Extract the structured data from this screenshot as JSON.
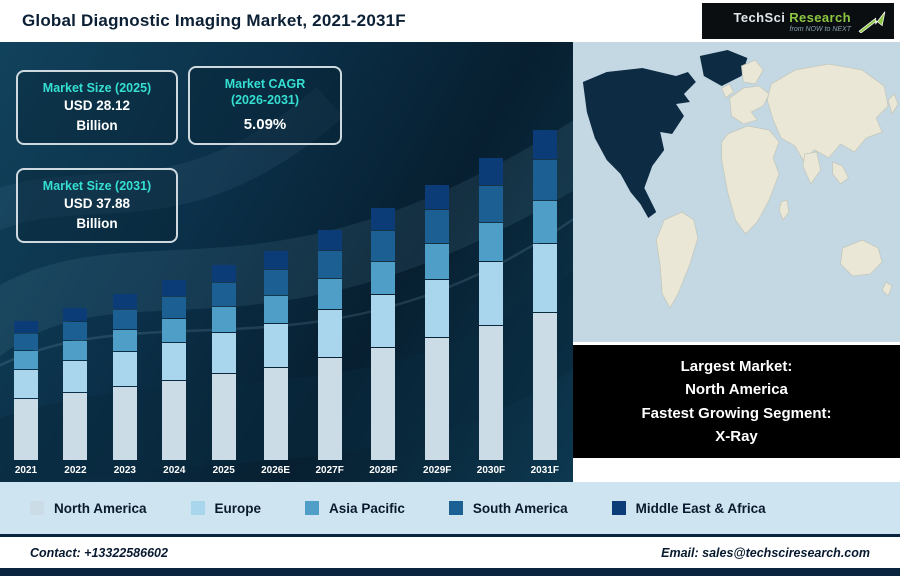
{
  "header": {
    "title": "Global Diagnostic Imaging Market, 2021-2031F"
  },
  "logo": {
    "name_part1": "TechSci",
    "name_part2": "Research",
    "tagline": "from NOW to NEXT"
  },
  "cards": [
    {
      "label": "Market Size (2025)",
      "value": "USD 28.12",
      "unit": "Billion"
    },
    {
      "label": "Market CAGR",
      "sublabel": "(2026-2031)",
      "value": "5.09%"
    },
    {
      "label": "Market Size (2031)",
      "value": "USD 37.88",
      "unit": "Billion"
    }
  ],
  "map_panel": {
    "lines": [
      "Largest Market:",
      "North America",
      "Fastest Growing Segment:",
      "X-Ray"
    ]
  },
  "footer": {
    "contact": "Contact: +13322586602",
    "email": "Email: sales@techsciresearch.com"
  },
  "colors": {
    "accent_teal": "#35dfd2",
    "brand_green": "#8bc541",
    "navy_bar": "#0a2440",
    "legend_strip": "#cfe4f1",
    "map_highlight": "#0e2b44"
  },
  "chart_data": {
    "type": "bar",
    "stacked": true,
    "title": "Global Diagnostic Imaging Market, 2021-2031F",
    "unit": "USD Billion",
    "categories": [
      "2021",
      "2022",
      "2023",
      "2024",
      "2025",
      "2026E",
      "2027F",
      "2028F",
      "2029F",
      "2030F",
      "2031F"
    ],
    "series": [
      {
        "name": "North America",
        "color": "#ccdce6",
        "values": [
          10.85,
          11.27,
          11.72,
          12.17,
          12.65,
          13.12,
          13.79,
          14.51,
          15.26,
          16.13,
          17.05
        ]
      },
      {
        "name": "Europe",
        "color": "#a9d6ec",
        "values": [
          5.06,
          5.26,
          5.47,
          5.68,
          5.91,
          6.12,
          6.44,
          6.77,
          7.12,
          7.53,
          7.95
        ]
      },
      {
        "name": "Asia Pacific",
        "color": "#4f9ec8",
        "values": [
          3.13,
          3.26,
          3.39,
          3.52,
          3.66,
          3.79,
          3.98,
          4.19,
          4.41,
          4.66,
          4.92
        ]
      },
      {
        "name": "South America",
        "color": "#1c5f92",
        "values": [
          2.89,
          3.01,
          3.13,
          3.25,
          3.37,
          3.5,
          3.68,
          3.87,
          4.07,
          4.3,
          4.55
        ]
      },
      {
        "name": "Middle East & Africa",
        "color": "#0b3c78",
        "values": [
          2.17,
          2.25,
          2.34,
          2.43,
          2.53,
          2.62,
          2.76,
          2.9,
          3.05,
          3.23,
          3.41
        ]
      }
    ],
    "known_points": {
      "total_2025": 28.12,
      "total_2031F": 37.88,
      "cagr_2026_2031": "5.09%"
    },
    "totals_estimated_between_known_points": true,
    "y_axis_visible": false,
    "legend_position": "bottom"
  }
}
